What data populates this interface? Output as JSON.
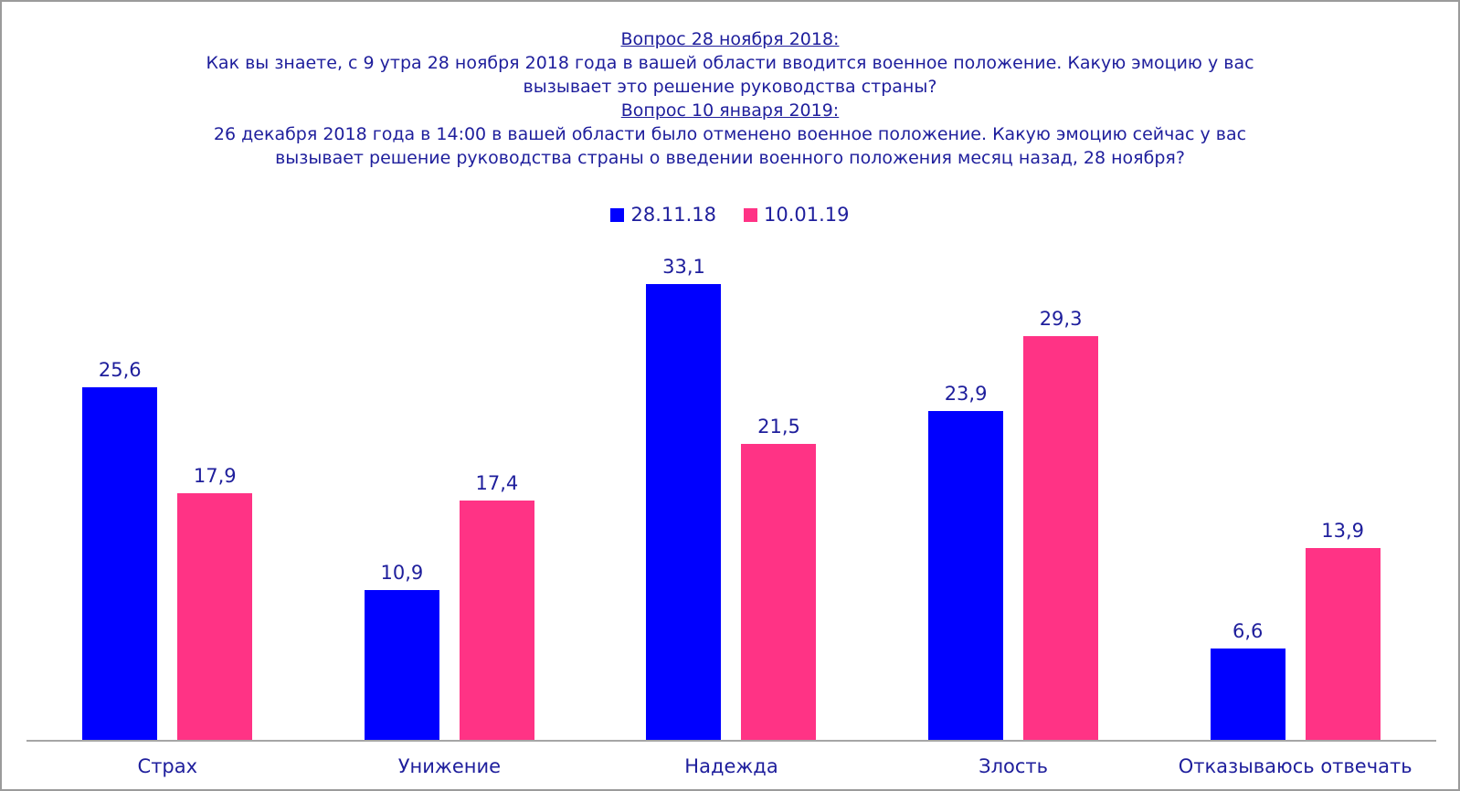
{
  "title": {
    "lines": [
      {
        "text": "Вопрос 28 ноября 2018:",
        "underline": true
      },
      {
        "text": "Как вы знаете, с 9 утра 28 ноября 2018 года в вашей области вводится военное положение. Какую эмоцию у вас",
        "underline": false
      },
      {
        "text": "вызывает это решение руководства страны?",
        "underline": false
      },
      {
        "text": "Вопрос 10 января 2019:",
        "underline": true
      },
      {
        "text": "26 декабря 2018 года в 14:00 в вашей области было отменено военное положение. Какую эмоцию сейчас у вас",
        "underline": false
      },
      {
        "text": "вызывает решение руководства страны о введении военного положения месяц назад, 28 ноября?",
        "underline": false
      }
    ]
  },
  "legend": {
    "items": [
      {
        "label": "28.11.18",
        "color": "#0000ff"
      },
      {
        "label": "10.01.19",
        "color": "#ff3385"
      }
    ]
  },
  "chart_data": {
    "type": "bar",
    "title": "Вопрос 28 ноября 2018: Как вы знаете, с 9 утра 28 ноября 2018 года в вашей области вводится военное положение. Какую эмоцию у вас вызывает это решение руководства страны? Вопрос 10 января 2019: 26 декабря 2018 года в 14:00 в вашей области было отменено военное положение. Какую эмоцию сейчас у вас вызывает решение руководства страны о введении военного положения месяц назад, 28 ноября?",
    "categories": [
      "Страх",
      "Унижение",
      "Надежда",
      "Злость",
      "Отказываюсь отвечать"
    ],
    "series": [
      {
        "name": "28.11.18",
        "color": "#0000ff",
        "values": [
          25.6,
          10.9,
          33.1,
          23.9,
          6.6
        ],
        "labels": [
          "25,6",
          "10,9",
          "33,1",
          "23,9",
          "6,6"
        ]
      },
      {
        "name": "10.01.19",
        "color": "#ff3385",
        "values": [
          17.9,
          17.4,
          21.5,
          29.3,
          13.9
        ],
        "labels": [
          "17,9",
          "17,4",
          "21,5",
          "29,3",
          "13,9"
        ]
      }
    ],
    "xlabel": "",
    "ylabel": "",
    "ylim": [
      0,
      33.5
    ],
    "grid": false,
    "y_axis_visible": false,
    "data_labels_visible": true,
    "decimal_separator": ",",
    "legend_position": "top-center",
    "axis_line_color": "#a6a6a6",
    "text_color": "#1e1e9c",
    "background_color": "#ffffff"
  }
}
